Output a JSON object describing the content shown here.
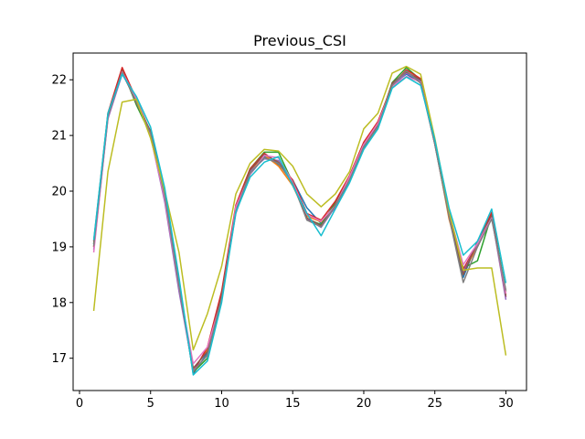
{
  "chart_data": {
    "type": "line",
    "title": "Previous_CSI",
    "xlabel": "",
    "ylabel": "",
    "xlim": [
      -0.45,
      31.45
    ],
    "ylim": [
      16.42,
      22.48
    ],
    "xticks": [
      0,
      5,
      10,
      15,
      20,
      25,
      30
    ],
    "yticks": [
      17,
      18,
      19,
      20,
      21,
      22
    ],
    "grid": false,
    "x": [
      1,
      2,
      3,
      4,
      5,
      6,
      7,
      8,
      9,
      10,
      11,
      12,
      13,
      14,
      15,
      16,
      17,
      18,
      19,
      20,
      21,
      22,
      23,
      24,
      25,
      26,
      27,
      28,
      29,
      30
    ],
    "series": [
      {
        "color": "#1f77b4",
        "values": [
          19.05,
          21.35,
          22.12,
          21.62,
          21.05,
          19.95,
          18.35,
          16.72,
          17.1,
          18.15,
          19.7,
          20.3,
          20.62,
          20.48,
          20.2,
          19.7,
          19.42,
          19.7,
          20.2,
          20.78,
          21.2,
          21.92,
          22.1,
          21.95,
          20.85,
          19.55,
          18.45,
          19.1,
          19.6,
          18.1
        ]
      },
      {
        "color": "#ff7f0e",
        "values": [
          19.0,
          21.32,
          22.15,
          21.6,
          21.0,
          19.85,
          18.25,
          16.8,
          17.15,
          18.1,
          19.65,
          20.35,
          20.65,
          20.45,
          20.1,
          19.55,
          19.45,
          19.75,
          20.25,
          20.85,
          21.25,
          21.9,
          22.15,
          21.98,
          20.88,
          19.5,
          18.55,
          19.0,
          19.55,
          18.15
        ]
      },
      {
        "color": "#2ca02c",
        "values": [
          19.05,
          21.38,
          22.18,
          21.55,
          21.02,
          19.9,
          18.3,
          16.75,
          17.0,
          18.05,
          19.7,
          20.4,
          20.7,
          20.7,
          20.15,
          19.5,
          19.4,
          19.8,
          20.2,
          20.8,
          21.15,
          21.95,
          22.22,
          22.0,
          20.9,
          19.6,
          18.62,
          18.75,
          19.58,
          18.2
        ]
      },
      {
        "color": "#d62728",
        "values": [
          19.1,
          21.4,
          22.22,
          21.65,
          21.05,
          19.95,
          18.35,
          16.75,
          17.2,
          18.2,
          19.75,
          20.4,
          20.68,
          20.5,
          20.2,
          19.6,
          19.48,
          19.82,
          20.28,
          20.88,
          21.25,
          21.9,
          22.18,
          22.02,
          20.85,
          19.58,
          18.6,
          19.05,
          19.62,
          18.1
        ]
      },
      {
        "color": "#9467bd",
        "values": [
          18.95,
          21.3,
          22.1,
          21.68,
          21.0,
          19.8,
          18.2,
          16.78,
          17.05,
          18.1,
          19.6,
          20.35,
          20.58,
          20.55,
          20.15,
          19.5,
          19.35,
          19.72,
          20.22,
          20.8,
          21.18,
          21.88,
          22.12,
          21.98,
          20.85,
          19.55,
          18.55,
          19.05,
          19.55,
          18.05
        ]
      },
      {
        "color": "#8c564b",
        "values": [
          19.0,
          21.36,
          22.16,
          21.58,
          21.08,
          19.88,
          18.32,
          16.82,
          17.12,
          18.12,
          19.68,
          20.38,
          20.66,
          20.52,
          20.18,
          19.52,
          19.38,
          19.76,
          20.24,
          20.82,
          21.2,
          21.94,
          22.14,
          22.0,
          20.86,
          19.56,
          18.5,
          19.08,
          19.56,
          18.12
        ]
      },
      {
        "color": "#e377c2",
        "values": [
          18.9,
          21.33,
          22.14,
          21.66,
          20.98,
          19.85,
          18.28,
          16.9,
          17.2,
          18.05,
          19.72,
          20.3,
          20.64,
          20.6,
          20.16,
          19.58,
          19.46,
          19.74,
          20.26,
          20.84,
          21.22,
          21.88,
          22.06,
          21.96,
          20.88,
          19.62,
          18.68,
          19.06,
          19.52,
          18.16
        ]
      },
      {
        "color": "#7f7f7f",
        "values": [
          19.02,
          21.34,
          22.13,
          21.6,
          21.04,
          19.92,
          18.3,
          16.76,
          17.06,
          18.08,
          19.64,
          20.32,
          20.6,
          20.5,
          20.14,
          19.48,
          19.36,
          19.74,
          20.2,
          20.8,
          21.16,
          21.9,
          22.16,
          21.94,
          20.84,
          19.54,
          18.36,
          19.0,
          19.5,
          18.22
        ]
      },
      {
        "color": "#bcbd22",
        "values": [
          17.85,
          20.35,
          21.6,
          21.65,
          20.95,
          20.0,
          18.9,
          17.15,
          17.8,
          18.65,
          19.95,
          20.5,
          20.75,
          20.72,
          20.45,
          19.95,
          19.72,
          19.95,
          20.35,
          21.12,
          21.4,
          22.12,
          22.24,
          22.1,
          20.95,
          19.65,
          18.58,
          18.62,
          18.62,
          17.05
        ]
      },
      {
        "color": "#17becf",
        "values": [
          19.12,
          21.4,
          22.1,
          21.7,
          21.15,
          20.05,
          18.45,
          16.7,
          16.95,
          18.0,
          19.62,
          20.25,
          20.52,
          20.62,
          20.1,
          19.6,
          19.2,
          19.68,
          20.15,
          20.75,
          21.12,
          21.85,
          22.05,
          21.9,
          20.92,
          19.7,
          18.85,
          19.1,
          19.68,
          18.35
        ]
      }
    ]
  }
}
